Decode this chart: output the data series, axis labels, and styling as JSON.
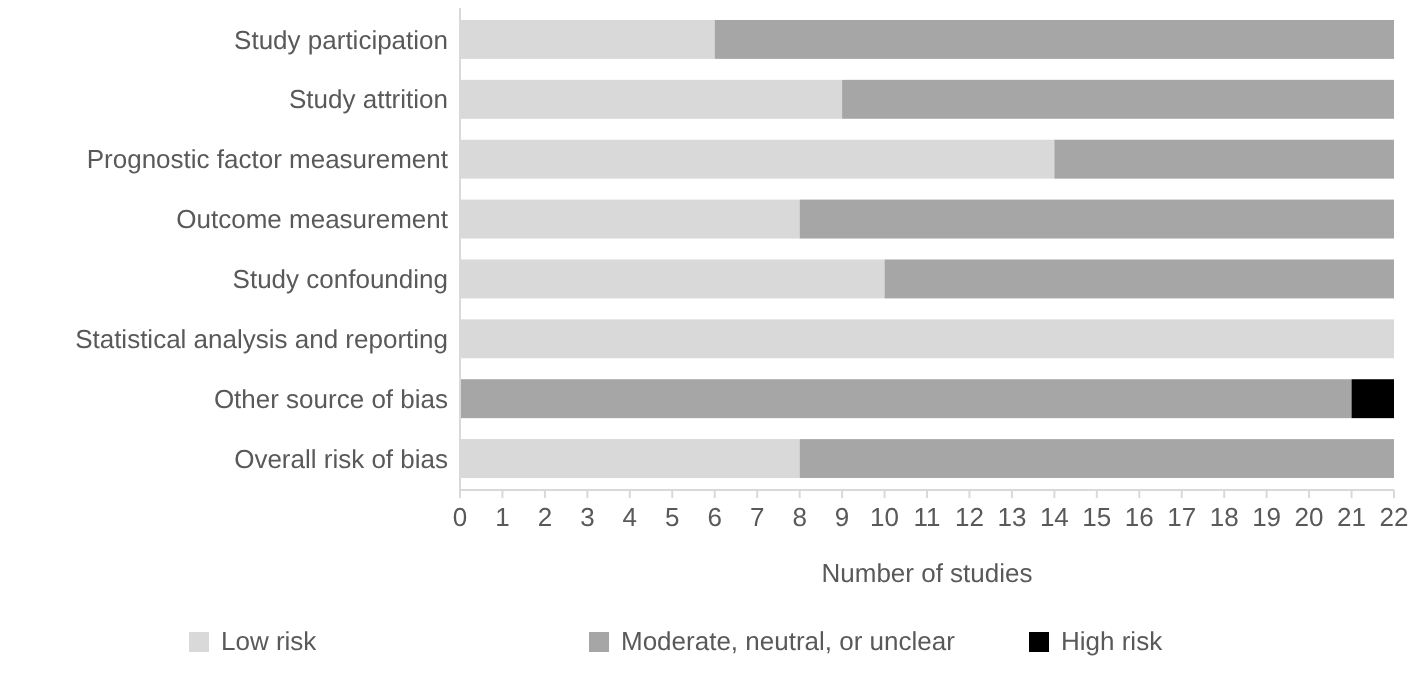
{
  "chart_data": {
    "type": "bar",
    "orientation": "horizontal",
    "stacked": true,
    "categories": [
      "Study participation",
      "Study attrition",
      "Prognostic factor measurement",
      "Outcome measurement",
      "Study confounding",
      "Statistical analysis and reporting",
      "Other source of bias",
      "Overall risk of bias"
    ],
    "series": [
      {
        "name": "Low risk",
        "color": "#d9d9d9",
        "values": [
          6,
          9,
          14,
          8,
          10,
          22,
          0,
          8
        ]
      },
      {
        "name": "Moderate, neutral, or unclear",
        "color": "#a6a6a6",
        "values": [
          16,
          13,
          8,
          14,
          12,
          0,
          21,
          14
        ]
      },
      {
        "name": "High risk",
        "color": "#000000",
        "values": [
          0,
          0,
          0,
          0,
          0,
          0,
          1,
          0
        ]
      }
    ],
    "xlabel": "Number of studies",
    "xlim": [
      0,
      22
    ],
    "xticks": [
      0,
      1,
      2,
      3,
      4,
      5,
      6,
      7,
      8,
      9,
      10,
      11,
      12,
      13,
      14,
      15,
      16,
      17,
      18,
      19,
      20,
      21,
      22
    ],
    "grid": false,
    "legend": "bottom"
  }
}
